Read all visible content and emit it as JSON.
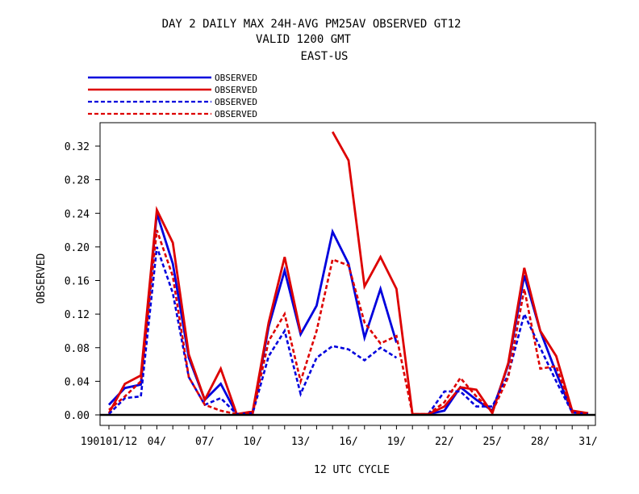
{
  "chart_data": {
    "type": "line",
    "title": [
      "DAY 2 DAILY MAX   24H-AVG PM25AV OBSERVED GT12",
      "VALID 1200 GMT",
      "EAST-US"
    ],
    "xlabel": "12 UTC CYCLE",
    "ylabel": "OBSERVED",
    "ylim": [
      0,
      0.35
    ],
    "yticks": [
      0.0,
      0.04,
      0.08,
      0.12,
      0.16,
      0.2,
      0.24,
      0.28,
      0.32
    ],
    "ytick_labels": [
      "0.00",
      "0.04",
      "0.08",
      "0.12",
      "0.16",
      "0.20",
      "0.24",
      "0.28",
      "0.32"
    ],
    "xlim": [
      0.5,
      31.5
    ],
    "xticks": [
      1,
      4,
      7,
      10,
      13,
      16,
      19,
      22,
      25,
      28,
      31
    ],
    "xtick_labels": [
      "190101/12",
      "04/",
      "07/",
      "10/",
      "13/",
      "16/",
      "19/",
      "22/",
      "25/",
      "28/",
      "31/"
    ],
    "x": [
      1,
      2,
      3,
      4,
      5,
      6,
      7,
      8,
      9,
      10,
      11,
      12,
      13,
      14,
      15,
      16,
      17,
      18,
      19,
      20,
      21,
      22,
      23,
      24,
      25,
      26,
      27,
      28,
      29,
      30,
      31
    ],
    "series": [
      {
        "name": "OBSERVED",
        "color": "#0000dd",
        "dash": "solid",
        "values": [
          0.012,
          0.032,
          0.036,
          0.24,
          0.18,
          0.068,
          0.018,
          0.037,
          0.001,
          0.002,
          0.105,
          0.172,
          0.096,
          0.13,
          0.218,
          0.18,
          0.092,
          0.15,
          0.086,
          null,
          0.001,
          0.005,
          0.033,
          0.018,
          0.005,
          0.06,
          0.166,
          0.1,
          0.05,
          0.003,
          0.002
        ]
      },
      {
        "name": "OBSERVED",
        "color": "#dd0000",
        "dash": "solid",
        "values": [
          0.002,
          0.037,
          0.047,
          0.244,
          0.205,
          0.072,
          0.018,
          0.055,
          0.001,
          0.004,
          0.11,
          0.188,
          0.098,
          null,
          0.337,
          0.303,
          0.153,
          0.188,
          0.15,
          0.001,
          0.001,
          0.01,
          0.033,
          0.03,
          0.002,
          0.062,
          0.175,
          0.1,
          0.07,
          0.005,
          0.002
        ]
      },
      {
        "name": "OBSERVED",
        "color": "#0000dd",
        "dash": "dashed",
        "values": [
          0.001,
          0.02,
          0.022,
          0.2,
          0.145,
          0.045,
          0.012,
          0.02,
          0.001,
          0.002,
          0.07,
          0.1,
          0.025,
          0.068,
          0.082,
          0.078,
          0.065,
          0.08,
          0.068,
          null,
          0.001,
          0.028,
          0.028,
          0.01,
          0.01,
          0.048,
          0.12,
          0.08,
          0.04,
          0.003,
          0.001
        ]
      },
      {
        "name": "OBSERVED",
        "color": "#dd0000",
        "dash": "dashed",
        "values": [
          0.006,
          0.022,
          0.04,
          0.22,
          0.165,
          0.045,
          0.012,
          0.005,
          0.001,
          0.002,
          0.088,
          0.12,
          0.04,
          0.1,
          0.185,
          0.178,
          0.11,
          0.085,
          0.094,
          0.001,
          0.001,
          0.015,
          0.044,
          0.022,
          0.004,
          0.045,
          0.15,
          0.055,
          0.058,
          0.003,
          0.001
        ]
      }
    ],
    "legend_position": "top-left",
    "grid": false
  }
}
